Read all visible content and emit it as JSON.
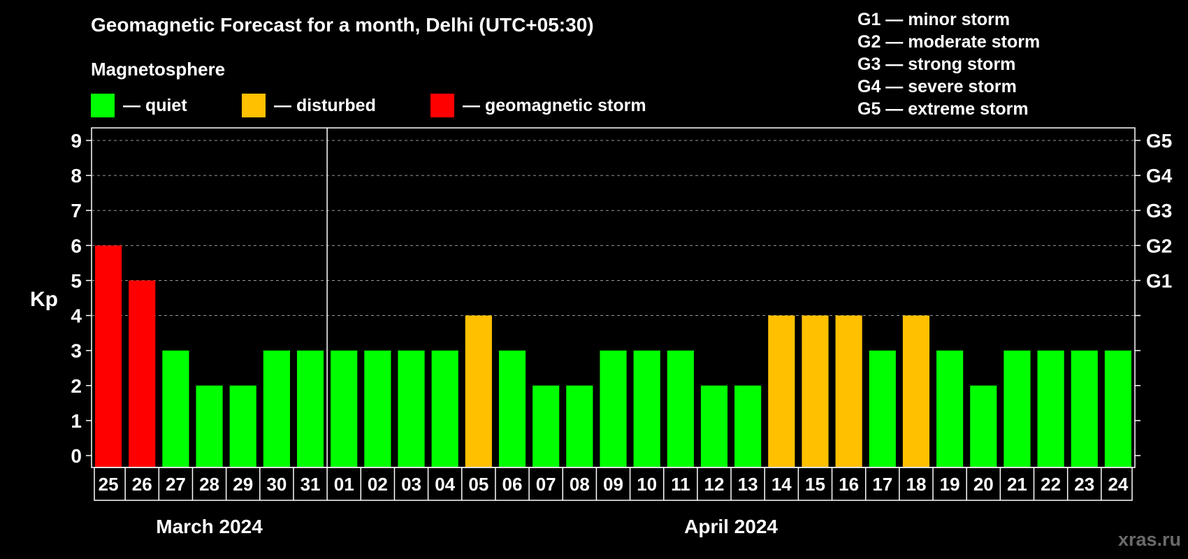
{
  "title": "Geomagnetic Forecast for a month, Delhi (UTC+05:30)",
  "subtitle": "Magnetosphere",
  "legend": [
    {
      "label": "— quiet",
      "color": "#00ff00"
    },
    {
      "label": "— disturbed",
      "color": "#ffc000"
    },
    {
      "label": "— geomagnetic storm",
      "color": "#ff0000"
    }
  ],
  "storm_scale": [
    "G1 — minor storm",
    "G2 — moderate storm",
    "G3 — strong storm",
    "G4 — severe storm",
    "G5 — extreme storm"
  ],
  "watermark": "xras.ru",
  "chart_data": {
    "type": "bar",
    "title": "Geomagnetic Forecast for a month, Delhi (UTC+05:30)",
    "ylabel": "Kp",
    "ylim": [
      0,
      9
    ],
    "yticks": [
      "0",
      "1",
      "2",
      "3",
      "4",
      "5",
      "6",
      "7",
      "8",
      "9"
    ],
    "right_axis_labels": [
      {
        "kp": 5,
        "label": "G1"
      },
      {
        "kp": 6,
        "label": "G2"
      },
      {
        "kp": 7,
        "label": "G3"
      },
      {
        "kp": 8,
        "label": "G4"
      },
      {
        "kp": 9,
        "label": "G5"
      }
    ],
    "categories": [
      "25",
      "26",
      "27",
      "28",
      "29",
      "30",
      "31",
      "01",
      "02",
      "03",
      "04",
      "05",
      "06",
      "07",
      "08",
      "09",
      "10",
      "11",
      "12",
      "13",
      "14",
      "15",
      "16",
      "17",
      "18",
      "19",
      "20",
      "21",
      "22",
      "23",
      "24"
    ],
    "values": [
      6,
      5,
      3,
      2,
      2,
      3,
      3,
      3,
      3,
      3,
      3,
      4,
      3,
      2,
      2,
      3,
      3,
      3,
      2,
      2,
      4,
      4,
      4,
      3,
      4,
      3,
      2,
      3,
      3,
      3,
      3
    ],
    "status": [
      "storm",
      "storm",
      "quiet",
      "quiet",
      "quiet",
      "quiet",
      "quiet",
      "quiet",
      "quiet",
      "quiet",
      "quiet",
      "disturbed",
      "quiet",
      "quiet",
      "quiet",
      "quiet",
      "quiet",
      "quiet",
      "quiet",
      "quiet",
      "disturbed",
      "disturbed",
      "disturbed",
      "quiet",
      "disturbed",
      "quiet",
      "quiet",
      "quiet",
      "quiet",
      "quiet",
      "quiet"
    ],
    "status_colors": {
      "quiet": "#00ff00",
      "disturbed": "#ffc000",
      "storm": "#ff0000"
    },
    "months": [
      {
        "label": "March 2024",
        "start_index": 0,
        "count": 7
      },
      {
        "label": "April 2024",
        "start_index": 7,
        "count": 24
      }
    ],
    "grid": true
  }
}
